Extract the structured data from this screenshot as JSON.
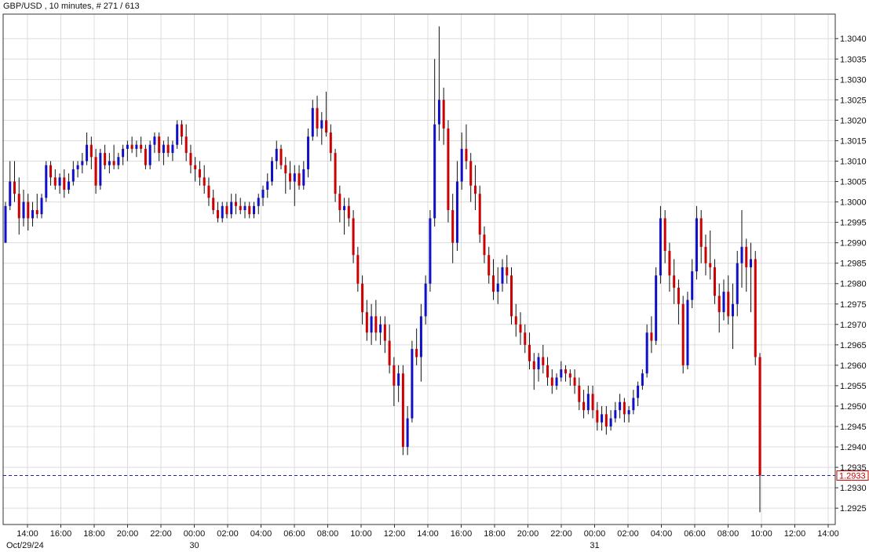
{
  "chart_data": {
    "type": "candlestick",
    "title": "GBP/USD , 10 minutes, # 271 / 613",
    "grid": true,
    "colors": {
      "up": "#1010c8",
      "down": "#cc0000",
      "grid": "#dcdcdc",
      "current_price_line": "#2020aa",
      "current_price_label": "#cc0000"
    },
    "y_axis": {
      "position": "right",
      "ylim": [
        1.2921,
        1.3046
      ],
      "ticks": [
        "1.3040",
        "1.3035",
        "1.3030",
        "1.3025",
        "1.3020",
        "1.3015",
        "1.3010",
        "1.3005",
        "1.3000",
        "1.2995",
        "1.2990",
        "1.2985",
        "1.2980",
        "1.2975",
        "1.2970",
        "1.2965",
        "1.2960",
        "1.2955",
        "1.2950",
        "1.2945",
        "1.2940",
        "1.2935",
        "1.2930",
        "1.2925"
      ]
    },
    "x_axis": {
      "tick_labels": [
        "14:00",
        "16:00",
        "18:00",
        "20:00",
        "22:00",
        "00:00",
        "02:00",
        "04:00",
        "06:00",
        "08:00",
        "10:00",
        "12:00",
        "14:00",
        "16:00",
        "18:00",
        "20:00",
        "22:00",
        "00:00",
        "02:00",
        "04:00",
        "06:00",
        "08:00",
        "10:00",
        "12:00",
        "14:00"
      ],
      "date_labels": [
        {
          "label": "Oct/29/24",
          "tick_index": 0
        },
        {
          "label": "30",
          "tick_index": 5
        },
        {
          "label": "31",
          "tick_index": 17
        }
      ]
    },
    "current_price": "1.2933",
    "candles": [
      {
        "o": 1.299,
        "h": 1.3,
        "l": 1.299,
        "c": 1.2999
      },
      {
        "o": 1.2999,
        "h": 1.301,
        "l": 1.2998,
        "c": 1.3005
      },
      {
        "o": 1.3005,
        "h": 1.301,
        "l": 1.3,
        "c": 1.3002
      },
      {
        "o": 1.3002,
        "h": 1.3006,
        "l": 1.2992,
        "c": 1.2996
      },
      {
        "o": 1.2996,
        "h": 1.3003,
        "l": 1.2994,
        "c": 1.3
      },
      {
        "o": 1.3,
        "h": 1.3002,
        "l": 1.2993,
        "c": 1.2996
      },
      {
        "o": 1.2996,
        "h": 1.3,
        "l": 1.2994,
        "c": 1.2998
      },
      {
        "o": 1.2998,
        "h": 1.3002,
        "l": 1.2996,
        "c": 1.2997
      },
      {
        "o": 1.2997,
        "h": 1.3002,
        "l": 1.2996,
        "c": 1.3001
      },
      {
        "o": 1.3001,
        "h": 1.301,
        "l": 1.3,
        "c": 1.3009
      },
      {
        "o": 1.3009,
        "h": 1.301,
        "l": 1.3004,
        "c": 1.3006
      },
      {
        "o": 1.3006,
        "h": 1.3008,
        "l": 1.3003,
        "c": 1.3004
      },
      {
        "o": 1.3004,
        "h": 1.3007,
        "l": 1.3002,
        "c": 1.3006
      },
      {
        "o": 1.3006,
        "h": 1.3008,
        "l": 1.3001,
        "c": 1.3003
      },
      {
        "o": 1.3003,
        "h": 1.3007,
        "l": 1.3002,
        "c": 1.3005
      },
      {
        "o": 1.3005,
        "h": 1.301,
        "l": 1.3004,
        "c": 1.3008
      },
      {
        "o": 1.3008,
        "h": 1.301,
        "l": 1.3006,
        "c": 1.3009
      },
      {
        "o": 1.3009,
        "h": 1.3012,
        "l": 1.3007,
        "c": 1.301
      },
      {
        "o": 1.301,
        "h": 1.3017,
        "l": 1.3009,
        "c": 1.3014
      },
      {
        "o": 1.3014,
        "h": 1.3016,
        "l": 1.3008,
        "c": 1.3011
      },
      {
        "o": 1.3011,
        "h": 1.3013,
        "l": 1.3002,
        "c": 1.3004
      },
      {
        "o": 1.3004,
        "h": 1.3013,
        "l": 1.3003,
        "c": 1.3012
      },
      {
        "o": 1.3012,
        "h": 1.3014,
        "l": 1.3008,
        "c": 1.3009
      },
      {
        "o": 1.3009,
        "h": 1.3012,
        "l": 1.3007,
        "c": 1.301
      },
      {
        "o": 1.301,
        "h": 1.3014,
        "l": 1.3008,
        "c": 1.3009
      },
      {
        "o": 1.3009,
        "h": 1.3012,
        "l": 1.3008,
        "c": 1.3011
      },
      {
        "o": 1.3011,
        "h": 1.3014,
        "l": 1.3009,
        "c": 1.3013
      },
      {
        "o": 1.3013,
        "h": 1.3015,
        "l": 1.301,
        "c": 1.3014
      },
      {
        "o": 1.3014,
        "h": 1.3016,
        "l": 1.3012,
        "c": 1.3013
      },
      {
        "o": 1.3013,
        "h": 1.3015,
        "l": 1.3011,
        "c": 1.3014
      },
      {
        "o": 1.3014,
        "h": 1.3016,
        "l": 1.3012,
        "c": 1.3013
      },
      {
        "o": 1.3013,
        "h": 1.3014,
        "l": 1.3008,
        "c": 1.3009
      },
      {
        "o": 1.3009,
        "h": 1.3015,
        "l": 1.3008,
        "c": 1.3014
      },
      {
        "o": 1.3014,
        "h": 1.3017,
        "l": 1.3012,
        "c": 1.3016
      },
      {
        "o": 1.3016,
        "h": 1.3017,
        "l": 1.301,
        "c": 1.3012
      },
      {
        "o": 1.3012,
        "h": 1.3015,
        "l": 1.3009,
        "c": 1.3014
      },
      {
        "o": 1.3014,
        "h": 1.3016,
        "l": 1.3011,
        "c": 1.3012
      },
      {
        "o": 1.3012,
        "h": 1.3015,
        "l": 1.301,
        "c": 1.3014
      },
      {
        "o": 1.3014,
        "h": 1.302,
        "l": 1.3013,
        "c": 1.3019
      },
      {
        "o": 1.3019,
        "h": 1.302,
        "l": 1.3014,
        "c": 1.3016
      },
      {
        "o": 1.3016,
        "h": 1.3019,
        "l": 1.301,
        "c": 1.3012
      },
      {
        "o": 1.3012,
        "h": 1.3014,
        "l": 1.3007,
        "c": 1.3009
      },
      {
        "o": 1.3009,
        "h": 1.3011,
        "l": 1.3005,
        "c": 1.3008
      },
      {
        "o": 1.3008,
        "h": 1.301,
        "l": 1.3004,
        "c": 1.3006
      },
      {
        "o": 1.3006,
        "h": 1.3009,
        "l": 1.3002,
        "c": 1.3004
      },
      {
        "o": 1.3004,
        "h": 1.3006,
        "l": 1.2999,
        "c": 1.3001
      },
      {
        "o": 1.3001,
        "h": 1.3003,
        "l": 1.2997,
        "c": 1.2998
      },
      {
        "o": 1.2998,
        "h": 1.3,
        "l": 1.2995,
        "c": 1.2996
      },
      {
        "o": 1.2996,
        "h": 1.3,
        "l": 1.2995,
        "c": 1.2999
      },
      {
        "o": 1.2999,
        "h": 1.3,
        "l": 1.2996,
        "c": 1.2997
      },
      {
        "o": 1.2997,
        "h": 1.3002,
        "l": 1.2996,
        "c": 1.3
      },
      {
        "o": 1.3,
        "h": 1.3002,
        "l": 1.2997,
        "c": 1.2999
      },
      {
        "o": 1.2999,
        "h": 1.3001,
        "l": 1.2997,
        "c": 1.2998
      },
      {
        "o": 1.2998,
        "h": 1.3,
        "l": 1.2996,
        "c": 1.2999
      },
      {
        "o": 1.2999,
        "h": 1.3,
        "l": 1.2996,
        "c": 1.2997
      },
      {
        "o": 1.2997,
        "h": 1.3,
        "l": 1.2996,
        "c": 1.2999
      },
      {
        "o": 1.2999,
        "h": 1.3002,
        "l": 1.2997,
        "c": 1.3001
      },
      {
        "o": 1.3001,
        "h": 1.3004,
        "l": 1.2999,
        "c": 1.3003
      },
      {
        "o": 1.3003,
        "h": 1.3007,
        "l": 1.3001,
        "c": 1.3005
      },
      {
        "o": 1.3005,
        "h": 1.3011,
        "l": 1.3004,
        "c": 1.301
      },
      {
        "o": 1.301,
        "h": 1.3015,
        "l": 1.3008,
        "c": 1.3013
      },
      {
        "o": 1.3013,
        "h": 1.3014,
        "l": 1.3008,
        "c": 1.3009
      },
      {
        "o": 1.3009,
        "h": 1.3011,
        "l": 1.3002,
        "c": 1.3007
      },
      {
        "o": 1.3007,
        "h": 1.301,
        "l": 1.3003,
        "c": 1.3005
      },
      {
        "o": 1.3005,
        "h": 1.3009,
        "l": 1.2999,
        "c": 1.3007
      },
      {
        "o": 1.3007,
        "h": 1.3009,
        "l": 1.3003,
        "c": 1.3004
      },
      {
        "o": 1.3004,
        "h": 1.301,
        "l": 1.3003,
        "c": 1.3008
      },
      {
        "o": 1.3008,
        "h": 1.3018,
        "l": 1.3006,
        "c": 1.3016
      },
      {
        "o": 1.3016,
        "h": 1.3025,
        "l": 1.3015,
        "c": 1.3023
      },
      {
        "o": 1.3023,
        "h": 1.3026,
        "l": 1.3016,
        "c": 1.3018
      },
      {
        "o": 1.3018,
        "h": 1.3022,
        "l": 1.3014,
        "c": 1.302
      },
      {
        "o": 1.302,
        "h": 1.3027,
        "l": 1.3016,
        "c": 1.3017
      },
      {
        "o": 1.3017,
        "h": 1.3019,
        "l": 1.301,
        "c": 1.3012
      },
      {
        "o": 1.3012,
        "h": 1.3013,
        "l": 1.3,
        "c": 1.3002
      },
      {
        "o": 1.3002,
        "h": 1.3004,
        "l": 1.2995,
        "c": 1.2998
      },
      {
        "o": 1.2998,
        "h": 1.3001,
        "l": 1.2992,
        "c": 1.2999
      },
      {
        "o": 1.2999,
        "h": 1.3001,
        "l": 1.2994,
        "c": 1.2996
      },
      {
        "o": 1.2996,
        "h": 1.2998,
        "l": 1.2985,
        "c": 1.2987
      },
      {
        "o": 1.2987,
        "h": 1.2989,
        "l": 1.2978,
        "c": 1.298
      },
      {
        "o": 1.298,
        "h": 1.2982,
        "l": 1.297,
        "c": 1.2973
      },
      {
        "o": 1.2973,
        "h": 1.2976,
        "l": 1.2966,
        "c": 1.2968
      },
      {
        "o": 1.2968,
        "h": 1.2975,
        "l": 1.2965,
        "c": 1.2972
      },
      {
        "o": 1.2972,
        "h": 1.2976,
        "l": 1.2966,
        "c": 1.2968
      },
      {
        "o": 1.2968,
        "h": 1.2972,
        "l": 1.2965,
        "c": 1.297
      },
      {
        "o": 1.297,
        "h": 1.2972,
        "l": 1.2963,
        "c": 1.2966
      },
      {
        "o": 1.2966,
        "h": 1.297,
        "l": 1.2958,
        "c": 1.296
      },
      {
        "o": 1.296,
        "h": 1.2962,
        "l": 1.295,
        "c": 1.2955
      },
      {
        "o": 1.2955,
        "h": 1.296,
        "l": 1.2951,
        "c": 1.2958
      },
      {
        "o": 1.2958,
        "h": 1.296,
        "l": 1.2938,
        "c": 1.294
      },
      {
        "o": 1.294,
        "h": 1.295,
        "l": 1.2938,
        "c": 1.2947
      },
      {
        "o": 1.2947,
        "h": 1.2966,
        "l": 1.2946,
        "c": 1.2964
      },
      {
        "o": 1.2964,
        "h": 1.2969,
        "l": 1.296,
        "c": 1.2962
      },
      {
        "o": 1.2962,
        "h": 1.2975,
        "l": 1.2956,
        "c": 1.2972
      },
      {
        "o": 1.2972,
        "h": 1.2982,
        "l": 1.297,
        "c": 1.298
      },
      {
        "o": 1.298,
        "h": 1.2998,
        "l": 1.2978,
        "c": 1.2996
      },
      {
        "o": 1.2996,
        "h": 1.3035,
        "l": 1.2994,
        "c": 1.3019
      },
      {
        "o": 1.3019,
        "h": 1.3043,
        "l": 1.3015,
        "c": 1.3025
      },
      {
        "o": 1.3025,
        "h": 1.3028,
        "l": 1.3014,
        "c": 1.3018
      },
      {
        "o": 1.3018,
        "h": 1.302,
        "l": 1.2995,
        "c": 1.2998
      },
      {
        "o": 1.2998,
        "h": 1.3002,
        "l": 1.2985,
        "c": 1.299
      },
      {
        "o": 1.299,
        "h": 1.301,
        "l": 1.2988,
        "c": 1.3005
      },
      {
        "o": 1.3005,
        "h": 1.3017,
        "l": 1.3003,
        "c": 1.3013
      },
      {
        "o": 1.3013,
        "h": 1.3019,
        "l": 1.3008,
        "c": 1.301
      },
      {
        "o": 1.301,
        "h": 1.3012,
        "l": 1.3,
        "c": 1.3004
      },
      {
        "o": 1.3004,
        "h": 1.3009,
        "l": 1.2998,
        "c": 1.3002
      },
      {
        "o": 1.3002,
        "h": 1.3004,
        "l": 1.299,
        "c": 1.2992
      },
      {
        "o": 1.2992,
        "h": 1.2994,
        "l": 1.2985,
        "c": 1.2987
      },
      {
        "o": 1.2987,
        "h": 1.2989,
        "l": 1.298,
        "c": 1.2982
      },
      {
        "o": 1.2982,
        "h": 1.2986,
        "l": 1.2976,
        "c": 1.2978
      },
      {
        "o": 1.2978,
        "h": 1.2984,
        "l": 1.2975,
        "c": 1.298
      },
      {
        "o": 1.298,
        "h": 1.2986,
        "l": 1.2978,
        "c": 1.2984
      },
      {
        "o": 1.2984,
        "h": 1.2987,
        "l": 1.298,
        "c": 1.2982
      },
      {
        "o": 1.2982,
        "h": 1.2984,
        "l": 1.297,
        "c": 1.2972
      },
      {
        "o": 1.2972,
        "h": 1.2975,
        "l": 1.2967,
        "c": 1.297
      },
      {
        "o": 1.297,
        "h": 1.2973,
        "l": 1.2965,
        "c": 1.2968
      },
      {
        "o": 1.2968,
        "h": 1.297,
        "l": 1.2963,
        "c": 1.2965
      },
      {
        "o": 1.2965,
        "h": 1.2968,
        "l": 1.2959,
        "c": 1.2961
      },
      {
        "o": 1.2961,
        "h": 1.2963,
        "l": 1.2954,
        "c": 1.2959
      },
      {
        "o": 1.2959,
        "h": 1.2963,
        "l": 1.2956,
        "c": 1.2962
      },
      {
        "o": 1.2962,
        "h": 1.2965,
        "l": 1.2958,
        "c": 1.296
      },
      {
        "o": 1.296,
        "h": 1.2962,
        "l": 1.2955,
        "c": 1.2957
      },
      {
        "o": 1.2957,
        "h": 1.2959,
        "l": 1.2953,
        "c": 1.2955
      },
      {
        "o": 1.2955,
        "h": 1.2958,
        "l": 1.2954,
        "c": 1.2957
      },
      {
        "o": 1.2957,
        "h": 1.2961,
        "l": 1.2956,
        "c": 1.2959
      },
      {
        "o": 1.2959,
        "h": 1.296,
        "l": 1.2956,
        "c": 1.2958
      },
      {
        "o": 1.2958,
        "h": 1.2959,
        "l": 1.2955,
        "c": 1.2957
      },
      {
        "o": 1.2957,
        "h": 1.2959,
        "l": 1.2953,
        "c": 1.2955
      },
      {
        "o": 1.2955,
        "h": 1.2957,
        "l": 1.2949,
        "c": 1.2951
      },
      {
        "o": 1.2951,
        "h": 1.2954,
        "l": 1.2947,
        "c": 1.2949
      },
      {
        "o": 1.2949,
        "h": 1.2955,
        "l": 1.2948,
        "c": 1.2953
      },
      {
        "o": 1.2953,
        "h": 1.2955,
        "l": 1.2947,
        "c": 1.2949
      },
      {
        "o": 1.2949,
        "h": 1.2951,
        "l": 1.2944,
        "c": 1.2946
      },
      {
        "o": 1.2946,
        "h": 1.295,
        "l": 1.2944,
        "c": 1.2948
      },
      {
        "o": 1.2948,
        "h": 1.295,
        "l": 1.2943,
        "c": 1.2945
      },
      {
        "o": 1.2945,
        "h": 1.2949,
        "l": 1.2944,
        "c": 1.2947
      },
      {
        "o": 1.2947,
        "h": 1.2951,
        "l": 1.2946,
        "c": 1.2949
      },
      {
        "o": 1.2949,
        "h": 1.2953,
        "l": 1.2947,
        "c": 1.2951
      },
      {
        "o": 1.2951,
        "h": 1.2952,
        "l": 1.2946,
        "c": 1.2948
      },
      {
        "o": 1.2948,
        "h": 1.295,
        "l": 1.2946,
        "c": 1.2949
      },
      {
        "o": 1.2949,
        "h": 1.2954,
        "l": 1.2948,
        "c": 1.2952
      },
      {
        "o": 1.2952,
        "h": 1.2956,
        "l": 1.295,
        "c": 1.2955
      },
      {
        "o": 1.2955,
        "h": 1.2959,
        "l": 1.2954,
        "c": 1.2958
      },
      {
        "o": 1.2958,
        "h": 1.297,
        "l": 1.2957,
        "c": 1.2968
      },
      {
        "o": 1.2968,
        "h": 1.2972,
        "l": 1.2963,
        "c": 1.2966
      },
      {
        "o": 1.2966,
        "h": 1.2984,
        "l": 1.2965,
        "c": 1.2982
      },
      {
        "o": 1.2982,
        "h": 1.2999,
        "l": 1.298,
        "c": 1.2996
      },
      {
        "o": 1.2996,
        "h": 1.2998,
        "l": 1.2985,
        "c": 1.2988
      },
      {
        "o": 1.2988,
        "h": 1.299,
        "l": 1.2978,
        "c": 1.2982
      },
      {
        "o": 1.2982,
        "h": 1.2986,
        "l": 1.2975,
        "c": 1.2979
      },
      {
        "o": 1.2979,
        "h": 1.2981,
        "l": 1.297,
        "c": 1.2975
      },
      {
        "o": 1.2975,
        "h": 1.2977,
        "l": 1.2958,
        "c": 1.296
      },
      {
        "o": 1.296,
        "h": 1.2978,
        "l": 1.2959,
        "c": 1.2976
      },
      {
        "o": 1.2976,
        "h": 1.2986,
        "l": 1.2974,
        "c": 1.2983
      },
      {
        "o": 1.2983,
        "h": 1.2999,
        "l": 1.2981,
        "c": 1.2996
      },
      {
        "o": 1.2996,
        "h": 1.2998,
        "l": 1.2985,
        "c": 1.2989
      },
      {
        "o": 1.2989,
        "h": 1.2992,
        "l": 1.2982,
        "c": 1.2985
      },
      {
        "o": 1.2985,
        "h": 1.2993,
        "l": 1.2981,
        "c": 1.2984
      },
      {
        "o": 1.2984,
        "h": 1.2986,
        "l": 1.2975,
        "c": 1.2977
      },
      {
        "o": 1.2977,
        "h": 1.298,
        "l": 1.2968,
        "c": 1.2973
      },
      {
        "o": 1.2973,
        "h": 1.2981,
        "l": 1.2971,
        "c": 1.2978
      },
      {
        "o": 1.2978,
        "h": 1.2982,
        "l": 1.297,
        "c": 1.2972
      },
      {
        "o": 1.2972,
        "h": 1.298,
        "l": 1.2964,
        "c": 1.2975
      },
      {
        "o": 1.2975,
        "h": 1.2988,
        "l": 1.2972,
        "c": 1.2985
      },
      {
        "o": 1.2985,
        "h": 1.2998,
        "l": 1.2979,
        "c": 1.2989
      },
      {
        "o": 1.2989,
        "h": 1.2991,
        "l": 1.2978,
        "c": 1.2984
      },
      {
        "o": 1.2984,
        "h": 1.299,
        "l": 1.2973,
        "c": 1.2986
      },
      {
        "o": 1.2986,
        "h": 1.2988,
        "l": 1.296,
        "c": 1.2962
      },
      {
        "o": 1.2962,
        "h": 1.2963,
        "l": 1.2924,
        "c": 1.2933
      }
    ]
  }
}
